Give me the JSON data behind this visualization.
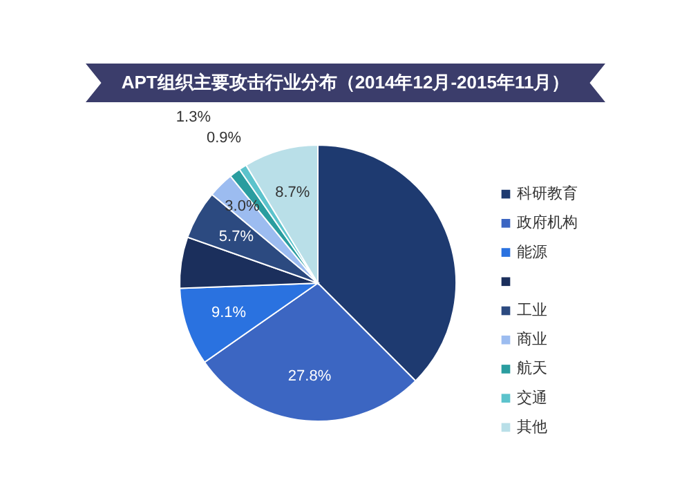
{
  "chart_data": {
    "type": "pie",
    "title": "APT组织主要攻击行业分布（2014年12月-2015年11月）",
    "categories": [
      "科研教育",
      "政府机构",
      "能源",
      null,
      "工业",
      "商业",
      "航天",
      "交通",
      "其他"
    ],
    "values": [
      37.5,
      27.8,
      9.1,
      6.0,
      5.7,
      3.0,
      1.3,
      0.9,
      8.7
    ],
    "value_labels": [
      null,
      "27.8%",
      "9.1%",
      null,
      "5.7%",
      "3.0%",
      "1.3%",
      "0.9%",
      "8.7%"
    ],
    "colors": [
      "#1e3a70",
      "#3c66c2",
      "#2a72e0",
      "#1b2f5c",
      "#2c4a80",
      "#9cbcf0",
      "#2a9d9f",
      "#5cc3cc",
      "#b9dfe8"
    ],
    "legend": "right"
  }
}
